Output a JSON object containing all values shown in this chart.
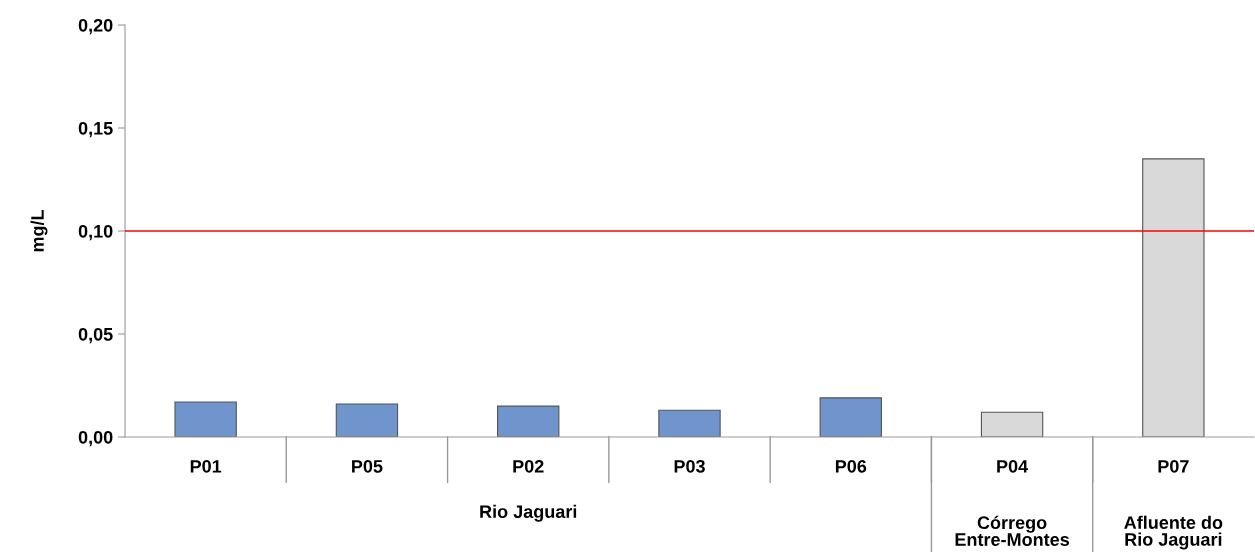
{
  "chart_data": {
    "type": "bar",
    "ylabel": "mg/L",
    "categories": [
      "P01",
      "P05",
      "P02",
      "P03",
      "P06",
      "P04",
      "P07"
    ],
    "values": [
      0.017,
      0.016,
      0.015,
      0.013,
      0.019,
      0.012,
      0.135
    ],
    "colors": [
      "#6f95cc",
      "#6f95cc",
      "#6f95cc",
      "#6f95cc",
      "#6f95cc",
      "#d9d9d9",
      "#d9d9d9"
    ],
    "ylim": [
      0,
      0.2
    ],
    "yticks": [
      {
        "value": 0,
        "label": "0,00"
      },
      {
        "value": 0.05,
        "label": "0,05"
      },
      {
        "value": 0.1,
        "label": "0,10"
      },
      {
        "value": 0.15,
        "label": "0,15"
      },
      {
        "value": 0.2,
        "label": "0,20"
      }
    ],
    "ref_lines": [
      {
        "axis": "y",
        "value": 0.1,
        "color": "#ff0000"
      }
    ],
    "annotations": [
      "Rio Jaguari",
      "Córrego\nEntre-Montes",
      "Afluente do\nRio Jaguari"
    ],
    "grid": false,
    "legend": false
  }
}
